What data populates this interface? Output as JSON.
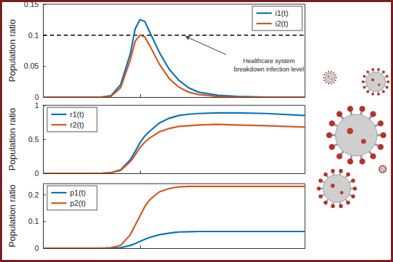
{
  "chart_data": [
    {
      "type": "line",
      "ylabel": "Population ratio",
      "x": [
        0,
        20,
        40,
        60,
        70,
        80,
        90,
        95,
        100,
        105,
        110,
        120,
        130,
        140,
        150,
        160,
        180,
        200,
        230,
        270
      ],
      "xlim": [
        0,
        270
      ],
      "xticks": [
        100
      ],
      "ylim": [
        0,
        0.15
      ],
      "yticks": [
        0,
        0.05,
        0.1,
        0.15
      ],
      "tick_labels": "y",
      "grid": false,
      "legend": "upper right",
      "series": [
        {
          "name": "i1(t)",
          "color": "#0072bd",
          "values": [
            0,
            0,
            0,
            0,
            0.002,
            0.02,
            0.07,
            0.11,
            0.125,
            0.122,
            0.105,
            0.072,
            0.045,
            0.027,
            0.015,
            0.008,
            0.003,
            0.001,
            0,
            0
          ]
        },
        {
          "name": "i2(t)",
          "color": "#d95319",
          "values": [
            0,
            0,
            0,
            0,
            0.001,
            0.015,
            0.06,
            0.09,
            0.1,
            0.097,
            0.083,
            0.053,
            0.03,
            0.016,
            0.008,
            0.004,
            0.001,
            0,
            0,
            0
          ]
        }
      ],
      "annotations": [
        {
          "text": [
            "Healthcare system",
            "breakdown infection level"
          ],
          "y": 0.1,
          "line_style": "dashed"
        }
      ]
    },
    {
      "type": "line",
      "ylabel": "Population ratio",
      "x": [
        0,
        20,
        40,
        60,
        70,
        80,
        90,
        95,
        100,
        105,
        110,
        120,
        130,
        140,
        150,
        160,
        180,
        200,
        230,
        270
      ],
      "xlim": [
        0,
        270
      ],
      "xticks": [
        100
      ],
      "ylim": [
        0,
        1
      ],
      "yticks": [
        0,
        0.5,
        1
      ],
      "tick_labels": "y",
      "grid": false,
      "legend": "upper left",
      "series": [
        {
          "name": "r1(t)",
          "color": "#0072bd",
          "values": [
            0,
            0,
            0,
            0,
            0.01,
            0.05,
            0.2,
            0.32,
            0.45,
            0.55,
            0.62,
            0.74,
            0.81,
            0.85,
            0.87,
            0.88,
            0.89,
            0.89,
            0.88,
            0.85
          ]
        },
        {
          "name": "r2(t)",
          "color": "#d95319",
          "values": [
            0,
            0,
            0,
            0,
            0.008,
            0.04,
            0.17,
            0.27,
            0.38,
            0.46,
            0.52,
            0.61,
            0.66,
            0.69,
            0.7,
            0.71,
            0.72,
            0.71,
            0.7,
            0.68
          ]
        }
      ]
    },
    {
      "type": "line",
      "ylabel": "Population ratio",
      "x": [
        0,
        20,
        40,
        60,
        70,
        80,
        90,
        95,
        100,
        105,
        110,
        120,
        130,
        140,
        150,
        160,
        180,
        200,
        230,
        270
      ],
      "xlim": [
        0,
        270
      ],
      "xticks": [
        100
      ],
      "ylim": [
        0,
        0.24
      ],
      "yticks": [
        0,
        0.1,
        0.2
      ],
      "tick_labels": "y",
      "grid": false,
      "legend": "upper left",
      "series": [
        {
          "name": "p1(t)",
          "color": "#0072bd",
          "values": [
            0,
            0,
            0,
            0,
            0,
            0.002,
            0.01,
            0.017,
            0.025,
            0.033,
            0.04,
            0.05,
            0.056,
            0.06,
            0.061,
            0.062,
            0.062,
            0.062,
            0.062,
            0.062
          ]
        },
        {
          "name": "p2(t)",
          "color": "#d95319",
          "values": [
            0,
            0,
            0,
            0,
            0.002,
            0.01,
            0.05,
            0.085,
            0.12,
            0.155,
            0.18,
            0.21,
            0.222,
            0.228,
            0.23,
            0.23,
            0.23,
            0.23,
            0.23,
            0.23
          ]
        }
      ]
    }
  ]
}
